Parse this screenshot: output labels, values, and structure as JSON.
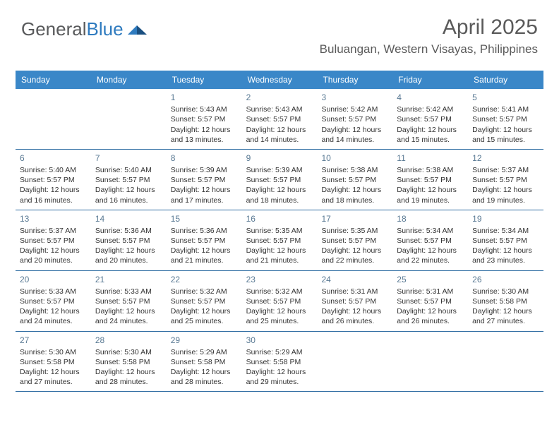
{
  "logo": {
    "text_gray": "General",
    "text_blue": "Blue"
  },
  "header": {
    "month_title": "April 2025",
    "location": "Buluangan, Western Visayas, Philippines"
  },
  "colors": {
    "header_bg": "#3a87c8",
    "header_text": "#ffffff",
    "week_border": "#2f6da3",
    "daynum": "#5a7a94",
    "body_text": "#333333",
    "logo_gray": "#58595b",
    "logo_blue": "#2f7bbf"
  },
  "day_headers": [
    "Sunday",
    "Monday",
    "Tuesday",
    "Wednesday",
    "Thursday",
    "Friday",
    "Saturday"
  ],
  "weeks": [
    [
      {
        "empty": true
      },
      {
        "empty": true
      },
      {
        "day": "1",
        "sunrise": "Sunrise: 5:43 AM",
        "sunset": "Sunset: 5:57 PM",
        "daylight1": "Daylight: 12 hours",
        "daylight2": "and 13 minutes."
      },
      {
        "day": "2",
        "sunrise": "Sunrise: 5:43 AM",
        "sunset": "Sunset: 5:57 PM",
        "daylight1": "Daylight: 12 hours",
        "daylight2": "and 14 minutes."
      },
      {
        "day": "3",
        "sunrise": "Sunrise: 5:42 AM",
        "sunset": "Sunset: 5:57 PM",
        "daylight1": "Daylight: 12 hours",
        "daylight2": "and 14 minutes."
      },
      {
        "day": "4",
        "sunrise": "Sunrise: 5:42 AM",
        "sunset": "Sunset: 5:57 PM",
        "daylight1": "Daylight: 12 hours",
        "daylight2": "and 15 minutes."
      },
      {
        "day": "5",
        "sunrise": "Sunrise: 5:41 AM",
        "sunset": "Sunset: 5:57 PM",
        "daylight1": "Daylight: 12 hours",
        "daylight2": "and 15 minutes."
      }
    ],
    [
      {
        "day": "6",
        "sunrise": "Sunrise: 5:40 AM",
        "sunset": "Sunset: 5:57 PM",
        "daylight1": "Daylight: 12 hours",
        "daylight2": "and 16 minutes."
      },
      {
        "day": "7",
        "sunrise": "Sunrise: 5:40 AM",
        "sunset": "Sunset: 5:57 PM",
        "daylight1": "Daylight: 12 hours",
        "daylight2": "and 16 minutes."
      },
      {
        "day": "8",
        "sunrise": "Sunrise: 5:39 AM",
        "sunset": "Sunset: 5:57 PM",
        "daylight1": "Daylight: 12 hours",
        "daylight2": "and 17 minutes."
      },
      {
        "day": "9",
        "sunrise": "Sunrise: 5:39 AM",
        "sunset": "Sunset: 5:57 PM",
        "daylight1": "Daylight: 12 hours",
        "daylight2": "and 18 minutes."
      },
      {
        "day": "10",
        "sunrise": "Sunrise: 5:38 AM",
        "sunset": "Sunset: 5:57 PM",
        "daylight1": "Daylight: 12 hours",
        "daylight2": "and 18 minutes."
      },
      {
        "day": "11",
        "sunrise": "Sunrise: 5:38 AM",
        "sunset": "Sunset: 5:57 PM",
        "daylight1": "Daylight: 12 hours",
        "daylight2": "and 19 minutes."
      },
      {
        "day": "12",
        "sunrise": "Sunrise: 5:37 AM",
        "sunset": "Sunset: 5:57 PM",
        "daylight1": "Daylight: 12 hours",
        "daylight2": "and 19 minutes."
      }
    ],
    [
      {
        "day": "13",
        "sunrise": "Sunrise: 5:37 AM",
        "sunset": "Sunset: 5:57 PM",
        "daylight1": "Daylight: 12 hours",
        "daylight2": "and 20 minutes."
      },
      {
        "day": "14",
        "sunrise": "Sunrise: 5:36 AM",
        "sunset": "Sunset: 5:57 PM",
        "daylight1": "Daylight: 12 hours",
        "daylight2": "and 20 minutes."
      },
      {
        "day": "15",
        "sunrise": "Sunrise: 5:36 AM",
        "sunset": "Sunset: 5:57 PM",
        "daylight1": "Daylight: 12 hours",
        "daylight2": "and 21 minutes."
      },
      {
        "day": "16",
        "sunrise": "Sunrise: 5:35 AM",
        "sunset": "Sunset: 5:57 PM",
        "daylight1": "Daylight: 12 hours",
        "daylight2": "and 21 minutes."
      },
      {
        "day": "17",
        "sunrise": "Sunrise: 5:35 AM",
        "sunset": "Sunset: 5:57 PM",
        "daylight1": "Daylight: 12 hours",
        "daylight2": "and 22 minutes."
      },
      {
        "day": "18",
        "sunrise": "Sunrise: 5:34 AM",
        "sunset": "Sunset: 5:57 PM",
        "daylight1": "Daylight: 12 hours",
        "daylight2": "and 22 minutes."
      },
      {
        "day": "19",
        "sunrise": "Sunrise: 5:34 AM",
        "sunset": "Sunset: 5:57 PM",
        "daylight1": "Daylight: 12 hours",
        "daylight2": "and 23 minutes."
      }
    ],
    [
      {
        "day": "20",
        "sunrise": "Sunrise: 5:33 AM",
        "sunset": "Sunset: 5:57 PM",
        "daylight1": "Daylight: 12 hours",
        "daylight2": "and 24 minutes."
      },
      {
        "day": "21",
        "sunrise": "Sunrise: 5:33 AM",
        "sunset": "Sunset: 5:57 PM",
        "daylight1": "Daylight: 12 hours",
        "daylight2": "and 24 minutes."
      },
      {
        "day": "22",
        "sunrise": "Sunrise: 5:32 AM",
        "sunset": "Sunset: 5:57 PM",
        "daylight1": "Daylight: 12 hours",
        "daylight2": "and 25 minutes."
      },
      {
        "day": "23",
        "sunrise": "Sunrise: 5:32 AM",
        "sunset": "Sunset: 5:57 PM",
        "daylight1": "Daylight: 12 hours",
        "daylight2": "and 25 minutes."
      },
      {
        "day": "24",
        "sunrise": "Sunrise: 5:31 AM",
        "sunset": "Sunset: 5:57 PM",
        "daylight1": "Daylight: 12 hours",
        "daylight2": "and 26 minutes."
      },
      {
        "day": "25",
        "sunrise": "Sunrise: 5:31 AM",
        "sunset": "Sunset: 5:57 PM",
        "daylight1": "Daylight: 12 hours",
        "daylight2": "and 26 minutes."
      },
      {
        "day": "26",
        "sunrise": "Sunrise: 5:30 AM",
        "sunset": "Sunset: 5:58 PM",
        "daylight1": "Daylight: 12 hours",
        "daylight2": "and 27 minutes."
      }
    ],
    [
      {
        "day": "27",
        "sunrise": "Sunrise: 5:30 AM",
        "sunset": "Sunset: 5:58 PM",
        "daylight1": "Daylight: 12 hours",
        "daylight2": "and 27 minutes."
      },
      {
        "day": "28",
        "sunrise": "Sunrise: 5:30 AM",
        "sunset": "Sunset: 5:58 PM",
        "daylight1": "Daylight: 12 hours",
        "daylight2": "and 28 minutes."
      },
      {
        "day": "29",
        "sunrise": "Sunrise: 5:29 AM",
        "sunset": "Sunset: 5:58 PM",
        "daylight1": "Daylight: 12 hours",
        "daylight2": "and 28 minutes."
      },
      {
        "day": "30",
        "sunrise": "Sunrise: 5:29 AM",
        "sunset": "Sunset: 5:58 PM",
        "daylight1": "Daylight: 12 hours",
        "daylight2": "and 29 minutes."
      },
      {
        "empty": true
      },
      {
        "empty": true
      },
      {
        "empty": true
      }
    ]
  ]
}
